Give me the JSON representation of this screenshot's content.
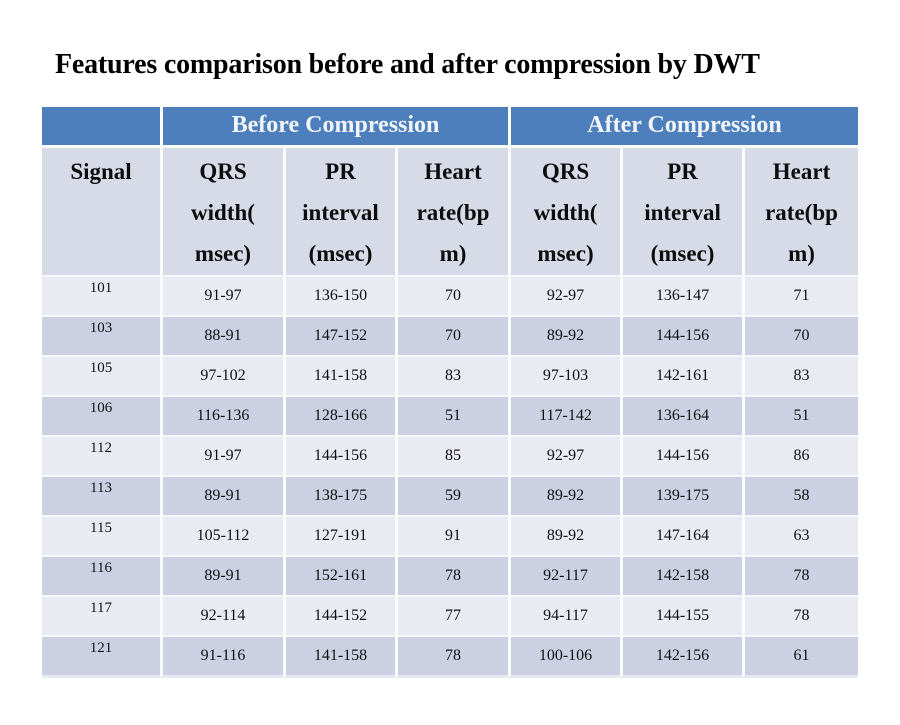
{
  "title": "Features comparison before and after compression by DWT",
  "colors": {
    "header_blue": "#4C7FBB",
    "header_text": "#F2F5FB",
    "subheader_bg": "#D7DAE7",
    "row_light": "#E9EAF2",
    "row_dark": "#CBD1E2",
    "text": "#111111"
  },
  "table": {
    "group_headers": {
      "before": "Before Compression",
      "after": "After Compression"
    },
    "column_headers": {
      "signal": "Signal",
      "qrs": "QRS\nwidth(\nmsec)",
      "pr": "PR\ninterval\n(msec)",
      "hr": "Heart\nrate(bp\nm)"
    },
    "rows": [
      {
        "signal": "101",
        "before": [
          "91-97",
          "136-150",
          "70"
        ],
        "after": [
          "92-97",
          "136-147",
          "71"
        ]
      },
      {
        "signal": "103",
        "before": [
          "88-91",
          "147-152",
          "70"
        ],
        "after": [
          "89-92",
          "144-156",
          "70"
        ]
      },
      {
        "signal": "105",
        "before": [
          "97-102",
          "141-158",
          "83"
        ],
        "after": [
          "97-103",
          "142-161",
          "83"
        ]
      },
      {
        "signal": "106",
        "before": [
          "116-136",
          "128-166",
          "51"
        ],
        "after": [
          "117-142",
          "136-164",
          "51"
        ]
      },
      {
        "signal": "112",
        "before": [
          "91-97",
          "144-156",
          "85"
        ],
        "after": [
          "92-97",
          "144-156",
          "86"
        ]
      },
      {
        "signal": "113",
        "before": [
          "89-91",
          "138-175",
          "59"
        ],
        "after": [
          "89-92",
          "139-175",
          "58"
        ]
      },
      {
        "signal": "115",
        "before": [
          "105-112",
          "127-191",
          "91"
        ],
        "after": [
          "89-92",
          "147-164",
          "63"
        ]
      },
      {
        "signal": "116",
        "before": [
          "89-91",
          "152-161",
          "78"
        ],
        "after": [
          "92-117",
          "142-158",
          "78"
        ]
      },
      {
        "signal": "117",
        "before": [
          "92-114",
          "144-152",
          "77"
        ],
        "after": [
          "94-117",
          "144-155",
          "78"
        ]
      },
      {
        "signal": "121",
        "before": [
          "91-116",
          "141-158",
          "78"
        ],
        "after": [
          "100-106",
          "142-156",
          "61"
        ]
      }
    ]
  }
}
